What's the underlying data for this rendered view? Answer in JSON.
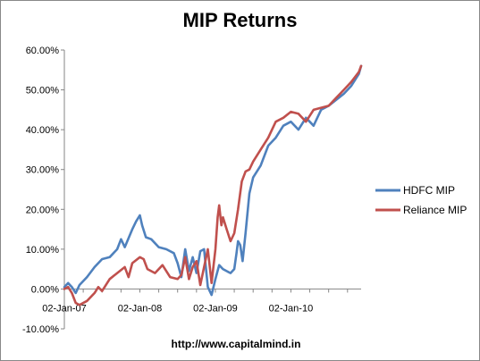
{
  "chart_data": {
    "type": "line",
    "title": "MIP Returns",
    "xlabel": "",
    "ylabel": "",
    "x_ticks": [
      "02-Jan-07",
      "02-Jan-08",
      "02-Jan-09",
      "02-Jan-10"
    ],
    "x_tick_years": [
      2007.0,
      2008.0,
      2009.0,
      2010.0
    ],
    "xlim": [
      2007.0,
      2010.93
    ],
    "y_ticks": [
      "-10.00%",
      "0.00%",
      "10.00%",
      "20.00%",
      "30.00%",
      "40.00%",
      "50.00%",
      "60.00%"
    ],
    "ylim": [
      -10,
      60
    ],
    "grid": false,
    "legend_position": "right",
    "series": [
      {
        "name": "HDFC MIP",
        "color": "#4F81BD",
        "x": [
          2007.0,
          2007.05,
          2007.1,
          2007.15,
          2007.2,
          2007.3,
          2007.4,
          2007.5,
          2007.6,
          2007.7,
          2007.75,
          2007.8,
          2007.9,
          2007.95,
          2008.0,
          2008.03,
          2008.08,
          2008.15,
          2008.25,
          2008.35,
          2008.45,
          2008.5,
          2008.55,
          2008.6,
          2008.65,
          2008.7,
          2008.75,
          2008.8,
          2008.85,
          2008.9,
          2008.95,
          2009.0,
          2009.05,
          2009.1,
          2009.15,
          2009.2,
          2009.25,
          2009.28,
          2009.3,
          2009.33,
          2009.36,
          2009.4,
          2009.45,
          2009.5,
          2009.6,
          2009.7,
          2009.8,
          2009.9,
          2010.0,
          2010.1,
          2010.2,
          2010.3,
          2010.4,
          2010.5,
          2010.6,
          2010.7,
          2010.8,
          2010.9,
          2010.93
        ],
        "y": [
          0.5,
          1.5,
          0.5,
          -1.0,
          1.0,
          3.0,
          5.5,
          7.5,
          8.0,
          10.0,
          12.5,
          10.5,
          15.0,
          17.0,
          18.5,
          16.0,
          13.0,
          12.5,
          10.5,
          10.0,
          9.0,
          6.5,
          3.0,
          10.0,
          4.5,
          8.0,
          4.0,
          9.5,
          10.0,
          0.5,
          -1.5,
          2.5,
          6.0,
          5.0,
          4.5,
          4.0,
          5.0,
          9.0,
          12.0,
          11.0,
          7.0,
          14.0,
          24.0,
          28.0,
          31.0,
          36.0,
          38.0,
          41.0,
          42.0,
          40.0,
          43.0,
          41.0,
          45.0,
          46.0,
          47.5,
          49.0,
          51.0,
          54.0,
          56.0
        ]
      },
      {
        "name": "Reliance MIP",
        "color": "#C0504D",
        "x": [
          2007.0,
          2007.05,
          2007.1,
          2007.15,
          2007.2,
          2007.3,
          2007.4,
          2007.45,
          2007.5,
          2007.6,
          2007.7,
          2007.8,
          2007.85,
          2007.9,
          2008.0,
          2008.05,
          2008.1,
          2008.2,
          2008.3,
          2008.4,
          2008.5,
          2008.55,
          2008.6,
          2008.65,
          2008.7,
          2008.75,
          2008.8,
          2008.85,
          2008.9,
          2008.95,
          2009.0,
          2009.03,
          2009.05,
          2009.08,
          2009.1,
          2009.15,
          2009.2,
          2009.25,
          2009.3,
          2009.35,
          2009.4,
          2009.45,
          2009.5,
          2009.6,
          2009.7,
          2009.8,
          2009.9,
          2010.0,
          2010.1,
          2010.2,
          2010.3,
          2010.4,
          2010.5,
          2010.6,
          2010.7,
          2010.8,
          2010.9,
          2010.93
        ],
        "y": [
          0.0,
          0.5,
          -1.0,
          -3.5,
          -4.0,
          -3.0,
          -1.0,
          0.5,
          -0.5,
          2.5,
          4.0,
          5.5,
          3.0,
          6.5,
          8.0,
          7.5,
          5.0,
          4.0,
          6.0,
          3.0,
          2.5,
          3.5,
          8.0,
          2.5,
          5.5,
          7.0,
          1.0,
          5.5,
          10.0,
          1.5,
          10.0,
          18.0,
          21.0,
          16.0,
          18.0,
          15.0,
          12.0,
          14.0,
          20.0,
          27.0,
          29.5,
          30.0,
          32.0,
          35.0,
          38.0,
          42.0,
          43.0,
          44.5,
          44.0,
          42.0,
          45.0,
          45.5,
          46.0,
          48.0,
          50.0,
          52.0,
          54.5,
          56.0
        ]
      }
    ]
  },
  "footer": {
    "text": "http://www.capitalmind.in"
  }
}
